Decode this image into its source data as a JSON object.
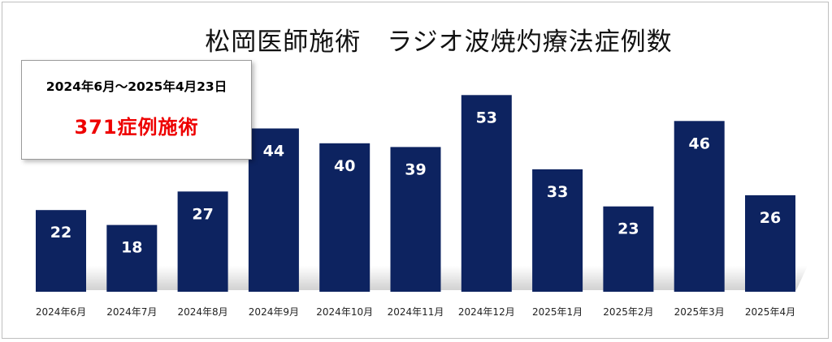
{
  "chart_data": {
    "type": "bar",
    "title": "松岡医師施術　ラジオ波焼灼療法症例数",
    "categories": [
      "2024年6月",
      "2024年7月",
      "2024年8月",
      "2024年9月",
      "2024年10月",
      "2024年11月",
      "2024年12月",
      "2025年1月",
      "2025年2月",
      "2025年3月",
      "2025年4月"
    ],
    "values": [
      22,
      18,
      27,
      44,
      40,
      39,
      53,
      33,
      23,
      46,
      26
    ],
    "xlabel": "",
    "ylabel": "",
    "ylim": [
      0,
      56
    ],
    "grid": false,
    "bar_color": "#0d2360",
    "data_label_color": "#ffffff",
    "annotation": {
      "period": "2024年6月～2025年4月23日",
      "total": "371症例施術",
      "total_color": "#ee0000"
    }
  }
}
